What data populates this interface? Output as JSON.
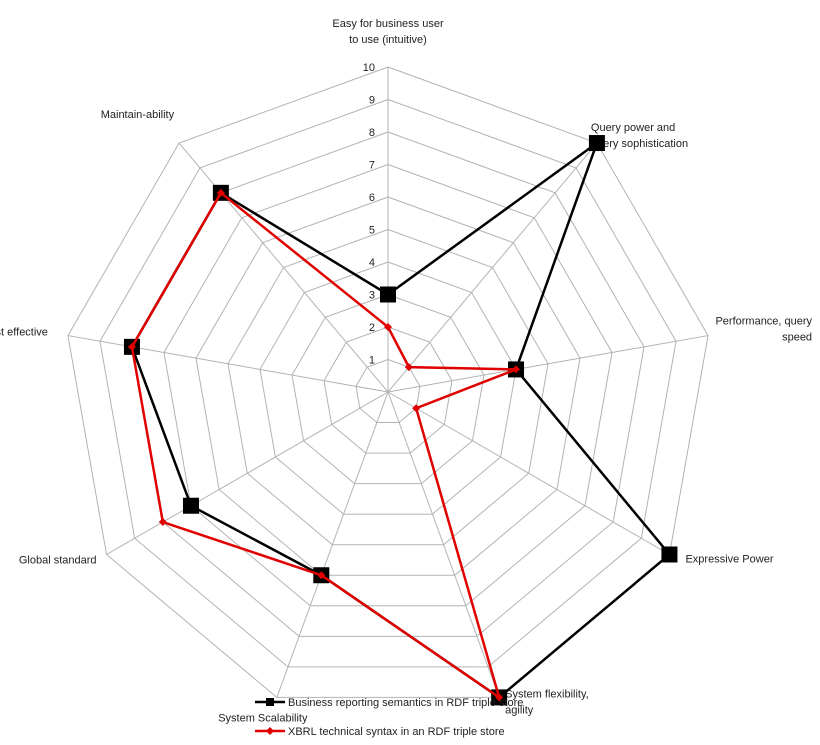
{
  "chart_data": {
    "type": "radar",
    "ticks": [
      "1",
      "2",
      "3",
      "4",
      "5",
      "6",
      "7",
      "8",
      "9",
      "10"
    ],
    "range": [
      0,
      10
    ],
    "axes": [
      {
        "label": [
          "Easy for business user",
          "to use (intuitive)"
        ]
      },
      {
        "label": [
          "Query power and",
          "query sophistication"
        ]
      },
      {
        "label": [
          "Performance, query",
          "speed"
        ]
      },
      {
        "label": [
          "Expressive Power"
        ]
      },
      {
        "label": [
          "System flexibility,",
          "agility"
        ]
      },
      {
        "label": [
          "System Scalability"
        ]
      },
      {
        "label": [
          "Global standard"
        ]
      },
      {
        "label": [
          "Cost effective"
        ]
      },
      {
        "label": [
          "Maintain-ability"
        ]
      }
    ],
    "series": [
      {
        "name": "Business reporting semantics in RDF triple store",
        "color": "#000000",
        "marker": "square",
        "values": [
          3,
          10,
          4,
          10,
          10,
          6,
          7,
          8,
          8
        ]
      },
      {
        "name": "XBRL technical syntax in an RDF triple store",
        "color": "#e00000",
        "marker": "diamond",
        "values": [
          2,
          1,
          4,
          1,
          10,
          6,
          8,
          8,
          8
        ]
      }
    ],
    "grid": true,
    "legend_position": "bottom"
  }
}
